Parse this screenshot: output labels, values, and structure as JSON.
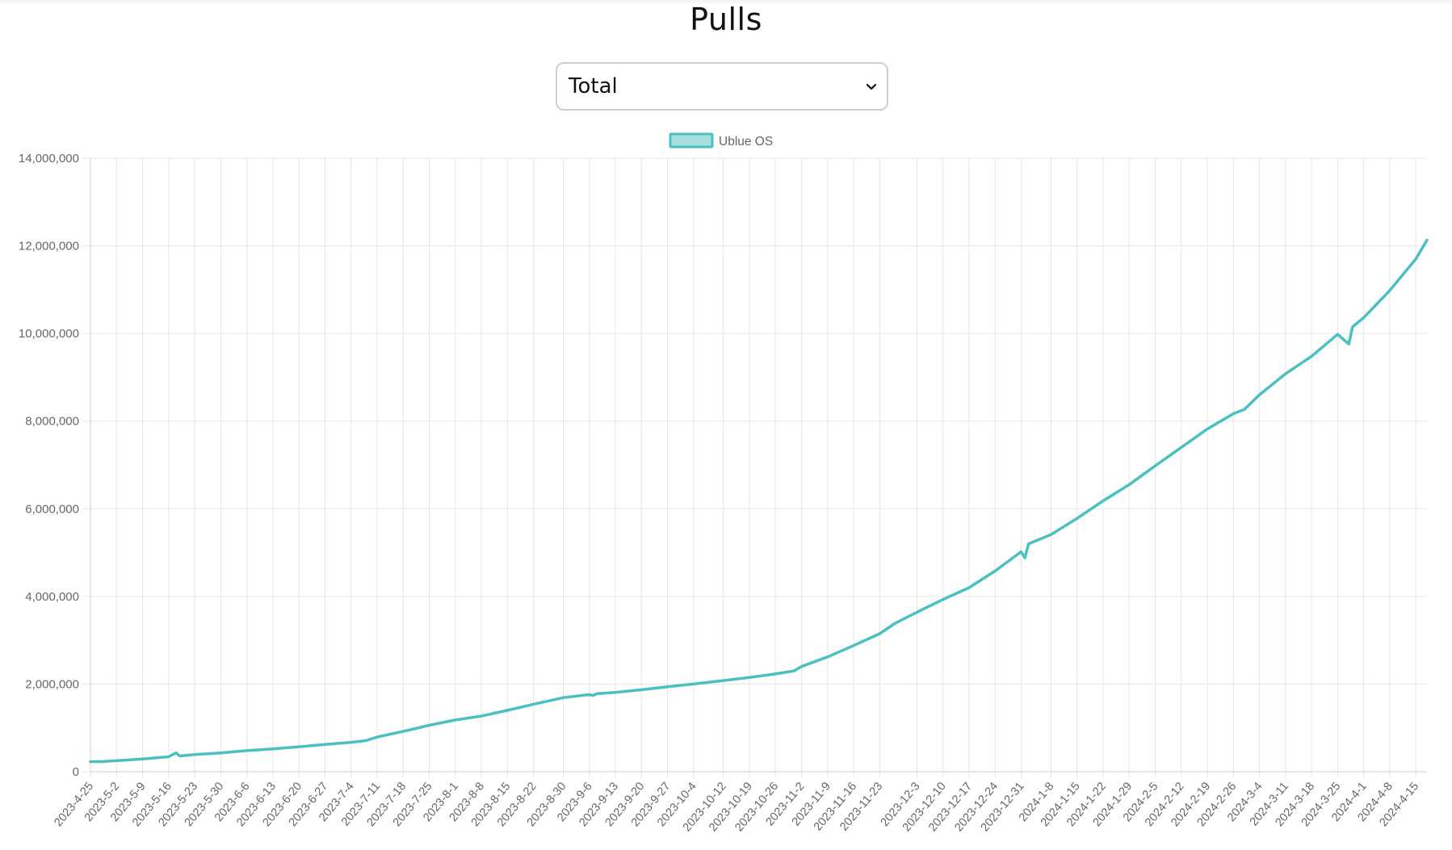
{
  "page": {
    "title": "Pulls"
  },
  "selector": {
    "selected": "Total",
    "icon": "chevron-down-icon"
  },
  "colors": {
    "series": "#4bc0c0",
    "series_fill": "#a6dfdf",
    "grid": "#e6e6e6",
    "tick": "#666666"
  },
  "chart_data": {
    "type": "line",
    "title": "",
    "xlabel": "",
    "ylabel": "",
    "ylim": [
      0,
      14000000
    ],
    "grid": true,
    "legend": "top-center",
    "y_ticks": [
      "0",
      "2,000,000",
      "4,000,000",
      "6,000,000",
      "8,000,000",
      "10,000,000",
      "12,000,000",
      "14,000,000"
    ],
    "x_ticks": [
      "2023-4-25",
      "2023-5-2",
      "2023-5-9",
      "2023-5-16",
      "2023-5-23",
      "2023-5-30",
      "2023-6-6",
      "2023-6-13",
      "2023-6-20",
      "2023-6-27",
      "2023-7-4",
      "2023-7-11",
      "2023-7-18",
      "2023-7-25",
      "2023-8-1",
      "2023-8-8",
      "2023-8-15",
      "2023-8-22",
      "2023-8-30",
      "2023-9-6",
      "2023-9-13",
      "2023-9-20",
      "2023-9-27",
      "2023-10-4",
      "2023-10-12",
      "2023-10-19",
      "2023-10-26",
      "2023-11-2",
      "2023-11-9",
      "2023-11-16",
      "2023-11-23",
      "2023-12-3",
      "2023-12-10",
      "2023-12-17",
      "2023-12-24",
      "2023-12-31",
      "2024-1-8",
      "2024-1-15",
      "2024-1-22",
      "2024-1-29",
      "2024-2-5",
      "2024-2-12",
      "2024-2-19",
      "2024-2-26",
      "2024-3-4",
      "2024-3-11",
      "2024-3-18",
      "2024-3-25",
      "2024-4-1",
      "2024-4-8",
      "2024-4-15"
    ],
    "series": [
      {
        "name": "Ublue OS",
        "points": [
          [
            "2023-4-25",
            230000
          ],
          [
            "2023-4-28",
            230000
          ],
          [
            "2023-5-2",
            250000
          ],
          [
            "2023-5-9",
            290000
          ],
          [
            "2023-5-16",
            340000
          ],
          [
            "2023-5-18",
            430000
          ],
          [
            "2023-5-19",
            360000
          ],
          [
            "2023-5-23",
            390000
          ],
          [
            "2023-5-30",
            430000
          ],
          [
            "2023-6-6",
            480000
          ],
          [
            "2023-6-13",
            520000
          ],
          [
            "2023-6-20",
            570000
          ],
          [
            "2023-6-27",
            620000
          ],
          [
            "2023-7-4",
            670000
          ],
          [
            "2023-7-8",
            710000
          ],
          [
            "2023-7-11",
            790000
          ],
          [
            "2023-7-18",
            920000
          ],
          [
            "2023-7-25",
            1060000
          ],
          [
            "2023-8-1",
            1180000
          ],
          [
            "2023-8-8",
            1270000
          ],
          [
            "2023-8-15",
            1400000
          ],
          [
            "2023-8-22",
            1540000
          ],
          [
            "2023-8-30",
            1690000
          ],
          [
            "2023-9-6",
            1760000
          ],
          [
            "2023-9-7",
            1740000
          ],
          [
            "2023-9-8",
            1780000
          ],
          [
            "2023-9-13",
            1810000
          ],
          [
            "2023-9-20",
            1870000
          ],
          [
            "2023-9-27",
            1940000
          ],
          [
            "2023-10-4",
            2000000
          ],
          [
            "2023-10-12",
            2080000
          ],
          [
            "2023-10-19",
            2150000
          ],
          [
            "2023-10-26",
            2230000
          ],
          [
            "2023-10-31",
            2300000
          ],
          [
            "2023-11-2",
            2400000
          ],
          [
            "2023-11-9",
            2620000
          ],
          [
            "2023-11-16",
            2880000
          ],
          [
            "2023-11-23",
            3150000
          ],
          [
            "2023-11-27",
            3380000
          ],
          [
            "2023-12-3",
            3640000
          ],
          [
            "2023-12-10",
            3930000
          ],
          [
            "2023-12-17",
            4200000
          ],
          [
            "2023-12-24",
            4580000
          ],
          [
            "2023-12-31",
            5020000
          ],
          [
            "2024-1-1",
            4880000
          ],
          [
            "2024-1-2",
            5200000
          ],
          [
            "2024-1-8",
            5410000
          ],
          [
            "2024-1-15",
            5780000
          ],
          [
            "2024-1-22",
            6180000
          ],
          [
            "2024-1-29",
            6550000
          ],
          [
            "2024-2-5",
            6980000
          ],
          [
            "2024-2-12",
            7400000
          ],
          [
            "2024-2-19",
            7820000
          ],
          [
            "2024-2-26",
            8170000
          ],
          [
            "2024-2-29",
            8270000
          ],
          [
            "2024-3-4",
            8600000
          ],
          [
            "2024-3-11",
            9080000
          ],
          [
            "2024-3-18",
            9480000
          ],
          [
            "2024-3-25",
            9980000
          ],
          [
            "2024-3-28",
            9760000
          ],
          [
            "2024-3-29",
            10150000
          ],
          [
            "2024-4-1",
            10360000
          ],
          [
            "2024-4-8",
            10980000
          ],
          [
            "2024-4-15",
            11700000
          ],
          [
            "2024-4-18",
            12130000
          ]
        ]
      }
    ]
  }
}
